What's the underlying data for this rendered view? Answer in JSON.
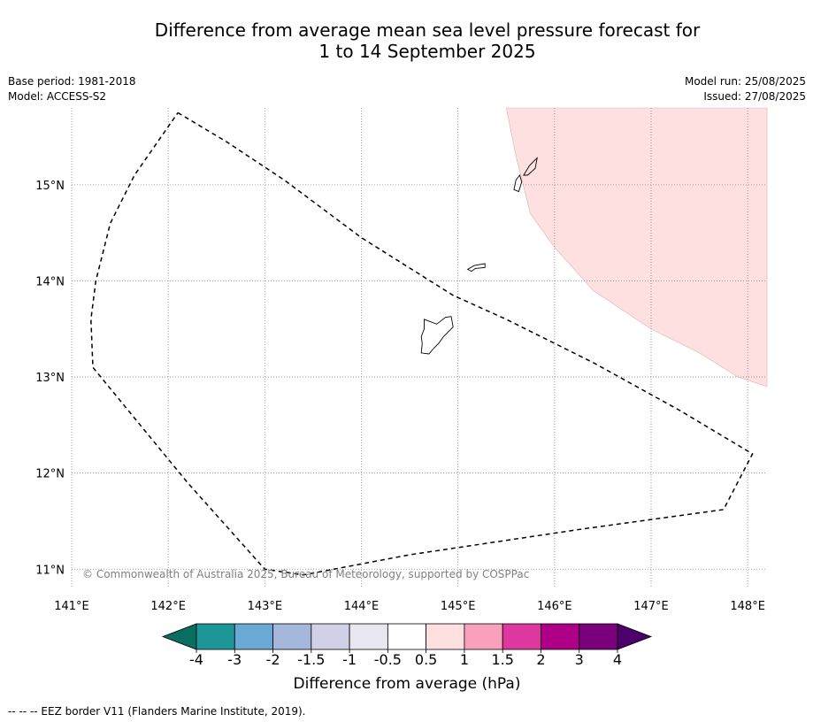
{
  "title": {
    "line1": "Difference from average mean sea level pressure forecast for",
    "line2": "1 to 14 September 2025"
  },
  "meta_left": {
    "base_period": "Base period: 1981-2018",
    "model": "Model: ACCESS-S2"
  },
  "meta_right": {
    "model_run": "Model run: 25/08/2025",
    "issued": "Issued: 27/08/2025"
  },
  "map": {
    "lon_ticks": [
      141,
      142,
      143,
      144,
      145,
      146,
      147,
      148
    ],
    "lon_labels": [
      "141°E",
      "142°E",
      "143°E",
      "144°E",
      "145°E",
      "146°E",
      "147°E",
      "148°E"
    ],
    "lat_ticks": [
      11,
      12,
      13,
      14,
      15
    ],
    "lat_labels": [
      "11°N",
      "12°N",
      "13°N",
      "14°N",
      "15°N"
    ],
    "extent": {
      "lon": [
        141,
        148.2
      ],
      "lat": [
        10.8,
        15.8
      ]
    },
    "copyright": "© Commonwealth of Australia 2025, Bureau of Meteorology, supported by COSPPac",
    "anomaly_region": {
      "category": "0.5 to 1",
      "color": "#fde0df",
      "boundary": [
        [
          145.5,
          15.8
        ],
        [
          145.6,
          15.3
        ],
        [
          145.75,
          14.7
        ],
        [
          146.0,
          14.35
        ],
        [
          146.4,
          13.9
        ],
        [
          147.0,
          13.5
        ],
        [
          147.5,
          13.25
        ],
        [
          147.9,
          13.0
        ],
        [
          148.2,
          12.9
        ],
        [
          148.2,
          15.8
        ]
      ]
    },
    "eez_border": [
      [
        142.1,
        15.75
      ],
      [
        142.6,
        15.45
      ],
      [
        143.2,
        15.05
      ],
      [
        144.0,
        14.45
      ],
      [
        144.95,
        13.85
      ],
      [
        145.5,
        13.6
      ],
      [
        146.4,
        13.15
      ],
      [
        147.3,
        12.65
      ],
      [
        148.05,
        12.2
      ],
      [
        147.75,
        11.62
      ],
      [
        146.3,
        11.42
      ],
      [
        144.5,
        11.15
      ],
      [
        143.4,
        10.94
      ],
      [
        143.0,
        11.0
      ],
      [
        142.2,
        11.9
      ],
      [
        141.22,
        13.1
      ],
      [
        141.2,
        13.6
      ],
      [
        141.25,
        14.0
      ],
      [
        141.4,
        14.6
      ],
      [
        141.65,
        15.1
      ],
      [
        142.1,
        15.75
      ]
    ],
    "islands": [
      {
        "name": "Guam",
        "points": [
          [
            144.65,
            13.6
          ],
          [
            144.78,
            13.55
          ],
          [
            144.87,
            13.62
          ],
          [
            144.93,
            13.63
          ],
          [
            144.95,
            13.52
          ],
          [
            144.85,
            13.42
          ],
          [
            144.8,
            13.35
          ],
          [
            144.75,
            13.3
          ],
          [
            144.7,
            13.24
          ],
          [
            144.62,
            13.25
          ],
          [
            144.63,
            13.35
          ],
          [
            144.62,
            13.42
          ],
          [
            144.65,
            13.5
          ]
        ]
      },
      {
        "name": "Rota",
        "points": [
          [
            145.1,
            14.12
          ],
          [
            145.17,
            14.16
          ],
          [
            145.28,
            14.18
          ],
          [
            145.28,
            14.14
          ],
          [
            145.18,
            14.13
          ],
          [
            145.14,
            14.1
          ]
        ]
      },
      {
        "name": "Tinian",
        "points": [
          [
            145.58,
            14.95
          ],
          [
            145.6,
            15.05
          ],
          [
            145.64,
            15.1
          ],
          [
            145.66,
            15.03
          ],
          [
            145.63,
            14.93
          ]
        ]
      },
      {
        "name": "Saipan",
        "points": [
          [
            145.68,
            15.1
          ],
          [
            145.74,
            15.2
          ],
          [
            145.8,
            15.26
          ],
          [
            145.82,
            15.28
          ],
          [
            145.8,
            15.17
          ],
          [
            145.72,
            15.1
          ]
        ]
      }
    ]
  },
  "colorbar": {
    "colors": [
      "#0a6d62",
      "#1d9698",
      "#6aa9d3",
      "#a5b8db",
      "#d0d0e7",
      "#e8e6ef",
      "#ffffff",
      "#fde0df",
      "#f9a1bb",
      "#dc38a0",
      "#ad0086",
      "#7b007b",
      "#4b006b"
    ],
    "labels": [
      "-4",
      "-3",
      "-2",
      "-1.5",
      "-1",
      "-0.5",
      "0.5",
      "1",
      "1.5",
      "2",
      "3",
      "4"
    ],
    "title": "Difference from average (hPa)"
  },
  "footnote": "--  --  -- EEZ border V11 (Flanders Marine Institute, 2019)."
}
